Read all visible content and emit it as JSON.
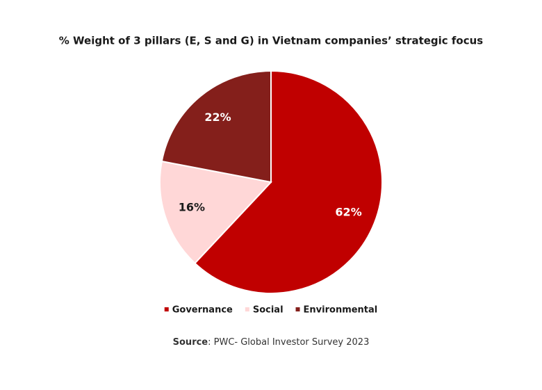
{
  "chart_data": {
    "type": "pie",
    "title": "% Weight of 3 pillars (E, S and G) in Vietnam companies’ strategic focus",
    "categories": [
      "Governance",
      "Social",
      "Environmental"
    ],
    "values": [
      62,
      16,
      22
    ],
    "value_labels": [
      "62%",
      "16%",
      "22%"
    ],
    "colors": [
      "#c00000",
      "#ffd7d7",
      "#841f1b"
    ],
    "legend": "bottom",
    "source": {
      "label": "Source",
      "text": ": PWC- Global Investor Survey 2023"
    }
  }
}
